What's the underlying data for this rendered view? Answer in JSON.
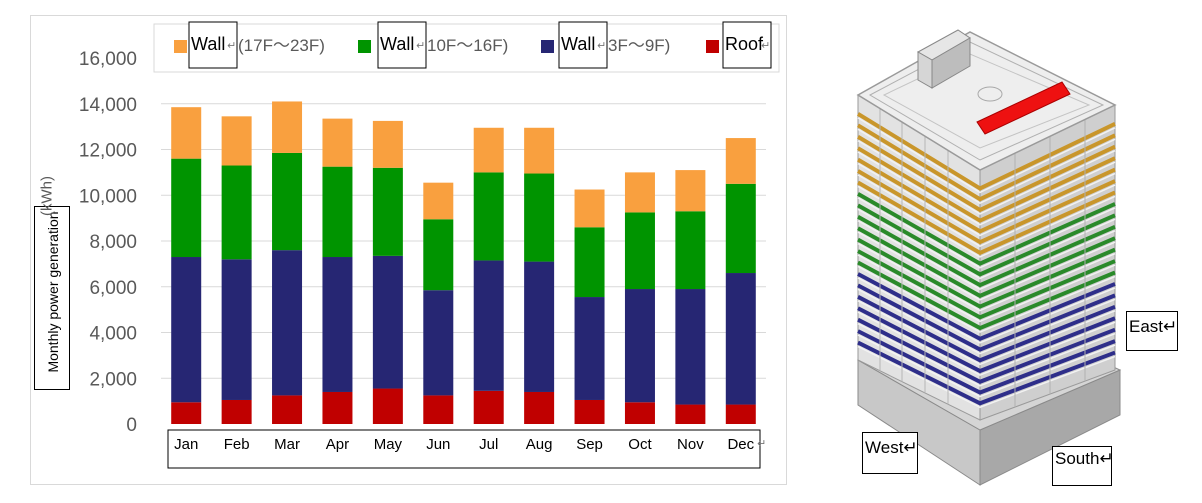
{
  "chart_data": {
    "type": "bar",
    "stacked": true,
    "categories": [
      "Jan",
      "Feb",
      "Mar",
      "Apr",
      "May",
      "Jun",
      "Jul",
      "Aug",
      "Sep",
      "Oct",
      "Nov",
      "Dec"
    ],
    "series": [
      {
        "name": "Roof",
        "color": "#c00000",
        "values": [
          950,
          1050,
          1250,
          1400,
          1550,
          1250,
          1450,
          1400,
          1050,
          950,
          850,
          850
        ]
      },
      {
        "name": "Wall(3F～9F)",
        "color": "#262673",
        "values": [
          6350,
          6150,
          6350,
          5900,
          5800,
          4600,
          5700,
          5700,
          4500,
          4950,
          5050,
          5750
        ]
      },
      {
        "name": "Wall(10F～16F)",
        "color": "#009400",
        "values": [
          4300,
          4100,
          4250,
          3950,
          3850,
          3100,
          3850,
          3850,
          3050,
          3350,
          3400,
          3900
        ]
      },
      {
        "name": "Wall(17F～23F)",
        "color": "#f9a03f",
        "values": [
          2250,
          2150,
          2250,
          2100,
          2050,
          1600,
          1950,
          2000,
          1650,
          1750,
          1800,
          2000
        ]
      }
    ],
    "ylabel": "Monthly power generation",
    "yunit": "(kWh)",
    "ylim": [
      0,
      16000
    ],
    "yticks": [
      0,
      2000,
      4000,
      6000,
      8000,
      10000,
      12000,
      14000,
      16000
    ],
    "ytick_labels": [
      "0",
      "2,000",
      "4,000",
      "6,000",
      "8,000",
      "10,000",
      "12,000",
      "14,000",
      "16,000"
    ],
    "legend": {
      "placement": "top",
      "entries": [
        {
          "prefix": "Wall",
          "suffix": "(17F～23F)",
          "color": "#f9a03f"
        },
        {
          "prefix": "Wall",
          "suffix": "10F～16F)",
          "color": "#009400"
        },
        {
          "prefix": "Wall",
          "suffix": "3F～9F)",
          "color": "#262673"
        },
        {
          "prefix": "Roof",
          "suffix": "",
          "color": "#c00000"
        }
      ]
    },
    "grid": true
  },
  "building": {
    "labels": {
      "east": "East",
      "west": "West",
      "south": "South"
    }
  }
}
